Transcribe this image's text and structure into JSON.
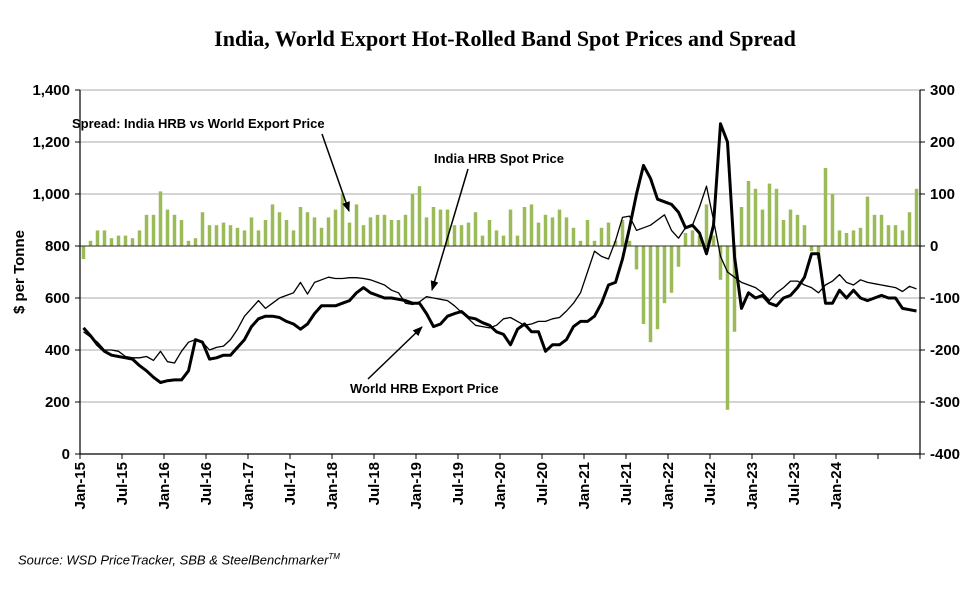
{
  "chart_data": {
    "type": "line",
    "title": "India, World Export Hot-Rolled Band Spot Prices and Spread",
    "ylabel": "$ per Tonne",
    "ylim": [
      0,
      1400
    ],
    "y_ticks": [
      "0",
      "200",
      "400",
      "600",
      "800",
      "1,000",
      "1,200",
      "1,400"
    ],
    "y2lim": [
      -400,
      300
    ],
    "y2_ticks": [
      "-400",
      "-300",
      "-200",
      "-100",
      "0",
      "100",
      "200",
      "300"
    ],
    "x_tick_labels": [
      "Jan-15",
      "Jul-15",
      "Jan-16",
      "Jul-16",
      "Jan-17",
      "Jul-17",
      "Jan-18",
      "Jul-18",
      "Jan-19",
      "Jul-19",
      "Jan-20",
      "Jul-20",
      "Jan-21",
      "Jul-21",
      "Jan-22",
      "Jul-22",
      "Jan-23",
      "Jul-23",
      "Jan-24"
    ],
    "grid": "horizontal",
    "colors": {
      "spread_bars": "#9bbb59",
      "lines": "#000000",
      "grid": "#aaaaaa"
    },
    "annotations": {
      "spread": "Spread: India HRB vs World Export Price",
      "india": "India HRB Spot  Price",
      "world": "World HRB Export Price"
    },
    "series": [
      {
        "name": "India HRB Spot  Price",
        "axis": "left",
        "style": "thin-line",
        "values": [
          470,
          450,
          430,
          400,
          400,
          395,
          375,
          370,
          370,
          375,
          360,
          395,
          355,
          350,
          395,
          430,
          440,
          430,
          400,
          410,
          415,
          440,
          480,
          530,
          560,
          590,
          560,
          580,
          600,
          610,
          620,
          660,
          615,
          660,
          670,
          680,
          675,
          675,
          678,
          678,
          675,
          670,
          660,
          650,
          630,
          620,
          580,
          575,
          585,
          605,
          600,
          595,
          590,
          570,
          545,
          520,
          495,
          490,
          485,
          495,
          520,
          525,
          510,
          495,
          500,
          510,
          510,
          520,
          525,
          550,
          580,
          620,
          700,
          780,
          760,
          750,
          820,
          910,
          915,
          860,
          870,
          880,
          900,
          920,
          860,
          830,
          870,
          880,
          950,
          1030,
          900,
          760,
          700,
          680,
          660,
          650,
          640,
          620,
          590,
          620,
          640,
          665,
          665,
          650,
          640,
          620,
          650,
          665,
          690,
          660,
          650,
          670,
          660,
          655,
          650,
          645,
          640,
          625,
          645,
          635
        ]
      },
      {
        "name": "World HRB Export Price",
        "axis": "left",
        "style": "thick-line",
        "values": [
          485,
          455,
          420,
          395,
          380,
          375,
          370,
          365,
          340,
          320,
          295,
          275,
          282,
          285,
          285,
          320,
          440,
          430,
          365,
          370,
          380,
          380,
          410,
          440,
          490,
          520,
          530,
          530,
          525,
          510,
          500,
          480,
          500,
          540,
          570,
          570,
          570,
          580,
          590,
          620,
          640,
          620,
          610,
          600,
          600,
          595,
          590,
          580,
          580,
          540,
          490,
          500,
          530,
          540,
          548,
          525,
          520,
          505,
          495,
          470,
          460,
          420,
          480,
          500,
          470,
          470,
          395,
          420,
          420,
          440,
          490,
          510,
          510,
          530,
          580,
          650,
          660,
          750,
          870,
          1000,
          1110,
          1060,
          980,
          970,
          960,
          930,
          870,
          880,
          850,
          770,
          880,
          1270,
          1200,
          760,
          560,
          620,
          600,
          610,
          580,
          570,
          600,
          610,
          640,
          680,
          770,
          770,
          580,
          580,
          630,
          600,
          630,
          600,
          590,
          600,
          610,
          600,
          600,
          560,
          555,
          550
        ]
      },
      {
        "name": "Spread: India HRB vs World Export Price",
        "axis": "right",
        "style": "bars",
        "values": [
          -25,
          10,
          30,
          30,
          15,
          20,
          20,
          15,
          30,
          60,
          60,
          105,
          70,
          60,
          50,
          10,
          15,
          65,
          40,
          40,
          45,
          40,
          35,
          30,
          55,
          30,
          50,
          80,
          65,
          50,
          30,
          75,
          65,
          55,
          35,
          55,
          70,
          100,
          45,
          80,
          40,
          55,
          60,
          60,
          50,
          50,
          60,
          100,
          115,
          55,
          75,
          70,
          70,
          40,
          40,
          45,
          65,
          20,
          50,
          30,
          20,
          70,
          20,
          75,
          80,
          45,
          60,
          55,
          70,
          55,
          35,
          10,
          50,
          10,
          35,
          45,
          10,
          50,
          10,
          -45,
          -150,
          -185,
          -160,
          -110,
          -90,
          -40,
          25,
          30,
          20,
          80,
          20,
          -65,
          -315,
          -165,
          75,
          125,
          110,
          70,
          120,
          110,
          50,
          70,
          60,
          40,
          -10,
          -25,
          150,
          100,
          30,
          25,
          30,
          35,
          95,
          60,
          60,
          40,
          40,
          30,
          65,
          110
        ]
      }
    ]
  },
  "source_note": {
    "text": "Source:  WSD PriceTracker, SBB & SteelBenchmarker",
    "superscript": "TM"
  }
}
